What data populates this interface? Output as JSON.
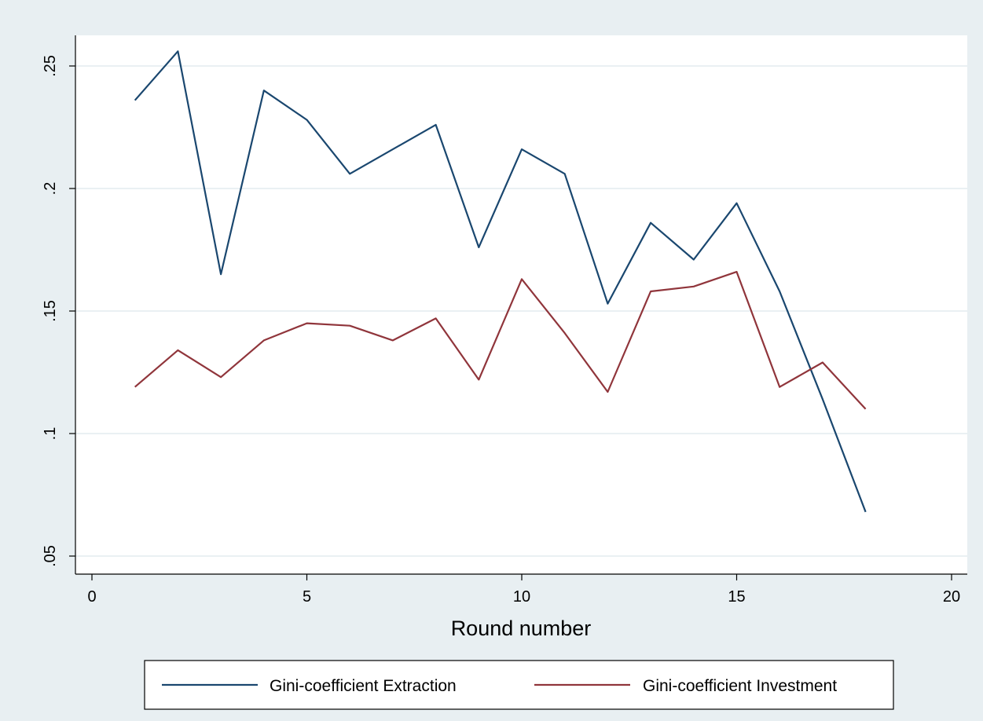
{
  "colors": {
    "background": "#e8eff2",
    "plot_background": "#ffffff",
    "grid": "#e4ecef",
    "axis": "#000000",
    "extraction": "#1a476f",
    "investment": "#90353b"
  },
  "chart_data": {
    "type": "line",
    "title": "",
    "xlabel": "Round number",
    "ylabel": "",
    "xlim": [
      0,
      20
    ],
    "ylim": [
      0.05,
      0.26
    ],
    "grid": true,
    "legend_position": "bottom",
    "x_ticks": [
      {
        "value": 0,
        "label": "0"
      },
      {
        "value": 5,
        "label": "5"
      },
      {
        "value": 10,
        "label": "10"
      },
      {
        "value": 15,
        "label": "15"
      },
      {
        "value": 20,
        "label": "20"
      }
    ],
    "y_ticks": [
      {
        "value": 0.05,
        "label": ".05"
      },
      {
        "value": 0.1,
        "label": ".1"
      },
      {
        "value": 0.15,
        "label": ".15"
      },
      {
        "value": 0.2,
        "label": ".2"
      },
      {
        "value": 0.25,
        "label": ".25"
      }
    ],
    "x": [
      1,
      2,
      3,
      4,
      5,
      6,
      7,
      8,
      9,
      10,
      11,
      12,
      13,
      14,
      15,
      16,
      17,
      18
    ],
    "series": [
      {
        "name": "Gini-coefficient Extraction",
        "values": [
          0.236,
          0.256,
          0.165,
          0.24,
          0.228,
          0.206,
          0.216,
          0.226,
          0.176,
          0.216,
          0.206,
          0.153,
          0.186,
          0.171,
          0.194,
          0.158,
          0.114,
          0.068
        ]
      },
      {
        "name": "Gini-coefficient Investment",
        "values": [
          0.119,
          0.134,
          0.123,
          0.138,
          0.145,
          0.144,
          0.138,
          0.147,
          0.122,
          0.163,
          0.141,
          0.117,
          0.158,
          0.16,
          0.166,
          0.119,
          0.129,
          0.11
        ]
      }
    ]
  }
}
